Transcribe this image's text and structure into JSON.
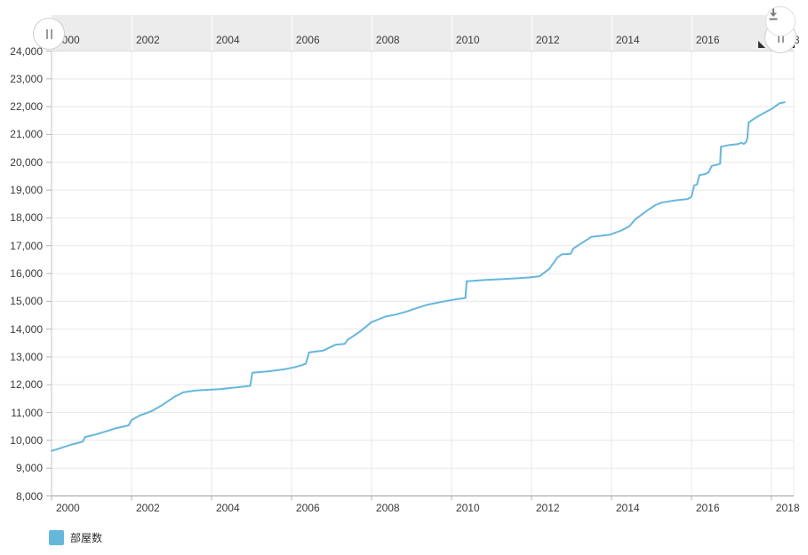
{
  "page": {
    "background": "#ffffff"
  },
  "toolbar": {
    "export_button": {
      "icon": "download-icon",
      "color": "#7d7d7d"
    },
    "scrollbar": {
      "left_grip_icon": "drag-grip-icon",
      "right_grip_icon": "drag-grip-icon",
      "strip_color": "#ececec"
    }
  },
  "chart_data": {
    "type": "line",
    "title": "",
    "xlabel": "",
    "ylabel": "",
    "grid": true,
    "legend_position": "bottom-left",
    "xlim": [
      2000,
      2018.56
    ],
    "ylim": [
      8000,
      24000
    ],
    "x_ticks": [
      2000,
      2002,
      2004,
      2006,
      2008,
      2010,
      2012,
      2014,
      2016,
      2018
    ],
    "scrollbar_x_ticks": [
      2000,
      2002,
      2004,
      2006,
      2008,
      2010,
      2012,
      2014,
      2016,
      2018
    ],
    "y_ticks": [
      "8,000",
      "9,000",
      "10,000",
      "11,000",
      "12,000",
      "13,000",
      "14,000",
      "15,000",
      "16,000",
      "17,000",
      "18,000",
      "19,000",
      "20,000",
      "21,000",
      "22,000",
      "23,000",
      "24,000"
    ],
    "series": [
      {
        "name": "部屋数",
        "color": "#67b7dc",
        "points": [
          [
            2000.0,
            9620
          ],
          [
            2000.25,
            9730
          ],
          [
            2000.5,
            9850
          ],
          [
            2000.78,
            9950
          ],
          [
            2000.84,
            10120
          ],
          [
            2001.15,
            10230
          ],
          [
            2001.6,
            10430
          ],
          [
            2001.93,
            10540
          ],
          [
            2002.0,
            10730
          ],
          [
            2002.2,
            10890
          ],
          [
            2002.5,
            11050
          ],
          [
            2002.77,
            11270
          ],
          [
            2003.1,
            11590
          ],
          [
            2003.3,
            11730
          ],
          [
            2003.6,
            11790
          ],
          [
            2004.2,
            11840
          ],
          [
            2004.8,
            11930
          ],
          [
            2004.97,
            11960
          ],
          [
            2005.02,
            12430
          ],
          [
            2005.4,
            12480
          ],
          [
            2005.8,
            12550
          ],
          [
            2006.05,
            12620
          ],
          [
            2006.25,
            12700
          ],
          [
            2006.36,
            12760
          ],
          [
            2006.44,
            13160
          ],
          [
            2006.8,
            13230
          ],
          [
            2007.1,
            13440
          ],
          [
            2007.33,
            13470
          ],
          [
            2007.4,
            13610
          ],
          [
            2007.7,
            13900
          ],
          [
            2008.0,
            14250
          ],
          [
            2008.35,
            14450
          ],
          [
            2008.6,
            14520
          ],
          [
            2008.85,
            14620
          ],
          [
            2009.4,
            14880
          ],
          [
            2009.9,
            15020
          ],
          [
            2010.1,
            15070
          ],
          [
            2010.35,
            15120
          ],
          [
            2010.38,
            15720
          ],
          [
            2010.85,
            15770
          ],
          [
            2011.3,
            15800
          ],
          [
            2011.7,
            15830
          ],
          [
            2011.96,
            15860
          ],
          [
            2012.2,
            15900
          ],
          [
            2012.45,
            16170
          ],
          [
            2012.65,
            16580
          ],
          [
            2012.76,
            16690
          ],
          [
            2012.98,
            16710
          ],
          [
            2013.05,
            16900
          ],
          [
            2013.5,
            17320
          ],
          [
            2013.97,
            17400
          ],
          [
            2014.25,
            17550
          ],
          [
            2014.45,
            17700
          ],
          [
            2014.6,
            17950
          ],
          [
            2014.91,
            18280
          ],
          [
            2015.1,
            18460
          ],
          [
            2015.25,
            18550
          ],
          [
            2015.6,
            18630
          ],
          [
            2015.91,
            18680
          ],
          [
            2016.0,
            18760
          ],
          [
            2016.07,
            19170
          ],
          [
            2016.14,
            19200
          ],
          [
            2016.2,
            19540
          ],
          [
            2016.33,
            19570
          ],
          [
            2016.42,
            19620
          ],
          [
            2016.51,
            19870
          ],
          [
            2016.65,
            19920
          ],
          [
            2016.72,
            19950
          ],
          [
            2016.74,
            20560
          ],
          [
            2016.95,
            20620
          ],
          [
            2017.15,
            20650
          ],
          [
            2017.25,
            20700
          ],
          [
            2017.31,
            20660
          ],
          [
            2017.37,
            20730
          ],
          [
            2017.4,
            20880
          ],
          [
            2017.43,
            21430
          ],
          [
            2017.6,
            21600
          ],
          [
            2017.8,
            21760
          ],
          [
            2018.02,
            21930
          ],
          [
            2018.2,
            22120
          ],
          [
            2018.33,
            22160
          ]
        ]
      }
    ],
    "colors": {
      "line": "#67b7dc",
      "grid": "#e8e8e8",
      "axis_line_bottom": "#9e9e9e",
      "axis_line_left": "#c4c4c4",
      "tick": "#b5b5b5",
      "label_text": "#3a3a3a"
    }
  }
}
